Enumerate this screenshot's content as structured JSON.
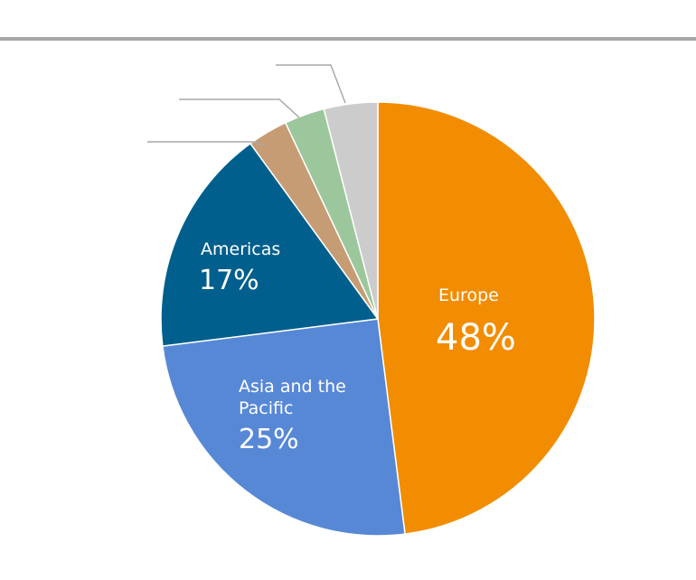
{
  "chart_data": {
    "type": "pie",
    "title": "",
    "slices": [
      {
        "label": "Europe",
        "value": 48,
        "value_label": "48%",
        "color": "#f28c00"
      },
      {
        "label": "Asia and the Pacific",
        "value": 25,
        "value_label": "25%",
        "color": "#5788d6"
      },
      {
        "label": "Americas",
        "value": 17,
        "value_label": "17%",
        "color": "#005f8c"
      },
      {
        "label": "",
        "value": 3,
        "value_label": "",
        "color": "#c69c74"
      },
      {
        "label": "",
        "value": 3,
        "value_label": "",
        "color": "#9cc79c"
      },
      {
        "label": "",
        "value": 4,
        "value_label": "",
        "color": "#cccccc"
      }
    ],
    "top_rule_color": "#a6a6a6",
    "legend": "none"
  }
}
